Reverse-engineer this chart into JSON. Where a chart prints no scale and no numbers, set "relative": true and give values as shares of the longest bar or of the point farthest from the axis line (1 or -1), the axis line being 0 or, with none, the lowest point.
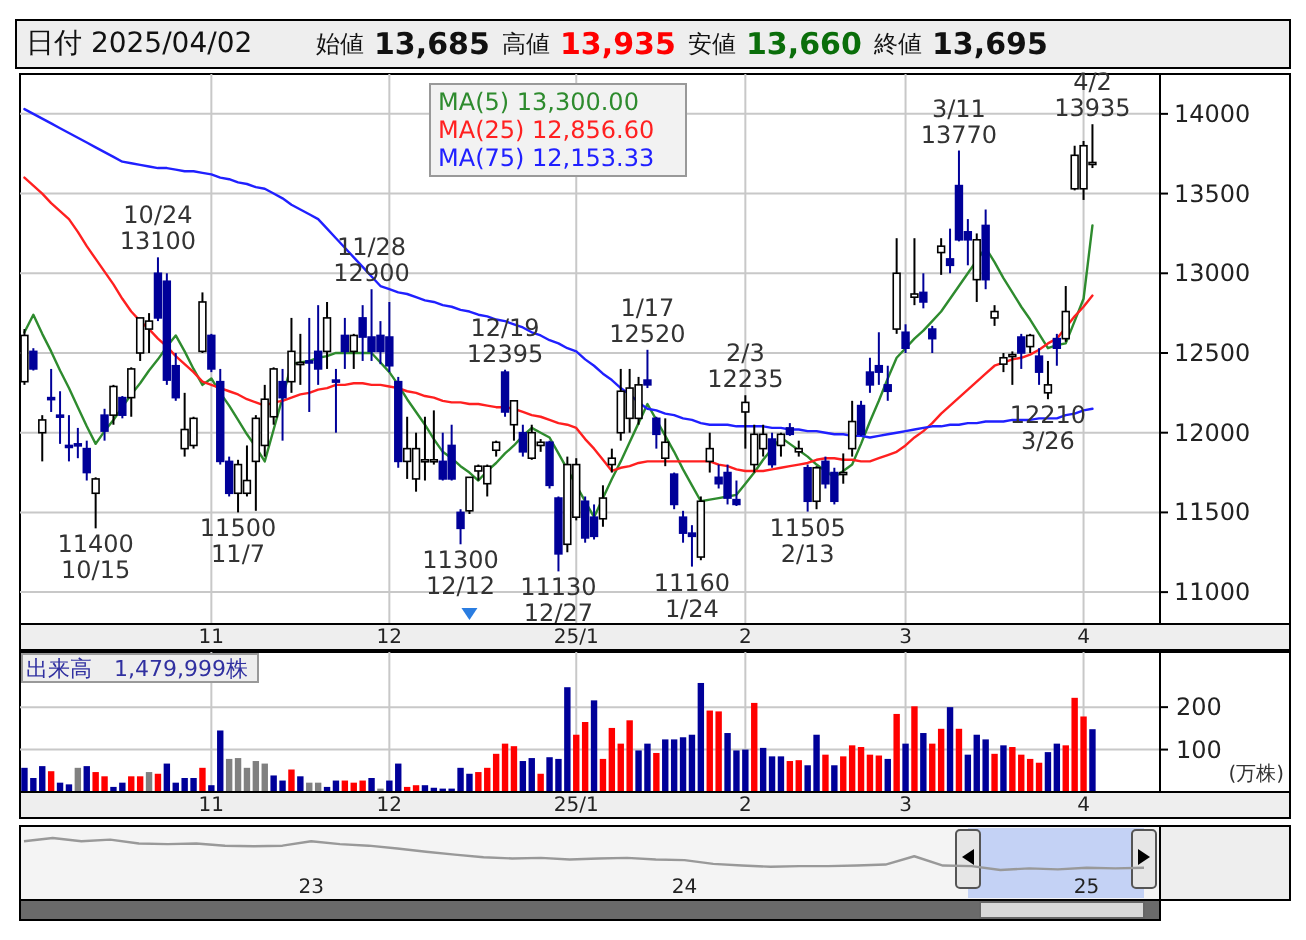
{
  "chart_data": [
    {
      "type": "other",
      "title": "日付 2025/04/02",
      "annotations": [
        "始値 13,685",
        "高値 13,935",
        "安値 13,660",
        "終値 13,695"
      ]
    },
    {
      "type": "candlestick",
      "ylim": [
        10800,
        14250
      ],
      "yticks": [
        11000,
        11500,
        12000,
        12500,
        13000,
        13500,
        14000
      ],
      "grid": true,
      "legend": "top",
      "categories": [
        null,
        null,
        null,
        null,
        null,
        null,
        null,
        null,
        null,
        null,
        null,
        null,
        null,
        null,
        null,
        null,
        null,
        null,
        null,
        null,
        null,
        "11",
        null,
        null,
        null,
        null,
        null,
        null,
        null,
        null,
        null,
        null,
        null,
        null,
        null,
        null,
        null,
        null,
        null,
        null,
        null,
        "12",
        null,
        null,
        null,
        null,
        null,
        null,
        null,
        null,
        null,
        null,
        null,
        null,
        null,
        null,
        null,
        null,
        null,
        null,
        null,
        null,
        "25/1",
        null,
        null,
        null,
        null,
        null,
        null,
        null,
        null,
        null,
        null,
        null,
        null,
        null,
        null,
        null,
        null,
        null,
        null,
        "2",
        null,
        null,
        null,
        null,
        null,
        null,
        null,
        null,
        null,
        null,
        null,
        null,
        null,
        null,
        null,
        null,
        null,
        "3",
        null,
        null,
        null,
        null,
        null,
        null,
        null,
        null,
        null,
        null,
        null,
        null,
        null,
        null,
        null,
        null,
        null,
        null,
        null,
        "4",
        null
      ],
      "ohlc": [
        [
          12320,
          12650,
          12300,
          12610
        ],
        [
          12510,
          12530,
          12390,
          12400
        ],
        [
          12000,
          12110,
          11820,
          12080
        ],
        [
          12220,
          12400,
          12130,
          12210
        ],
        [
          12110,
          12260,
          11930,
          12100
        ],
        [
          11920,
          12110,
          11820,
          11910
        ],
        [
          11930,
          12030,
          11840,
          11920
        ],
        [
          11900,
          11950,
          11700,
          11750
        ],
        [
          11620,
          11720,
          11400,
          11710
        ],
        [
          12110,
          12150,
          11950,
          12010
        ],
        [
          12110,
          12300,
          12050,
          12290
        ],
        [
          12220,
          12230,
          12090,
          12110
        ],
        [
          12220,
          12410,
          12100,
          12400
        ],
        [
          12500,
          12720,
          12450,
          12720
        ],
        [
          12650,
          12750,
          12500,
          12700
        ],
        [
          13000,
          13100,
          12700,
          12720
        ],
        [
          12950,
          13000,
          12300,
          12330
        ],
        [
          12420,
          12500,
          12200,
          12220
        ],
        [
          11900,
          12250,
          11850,
          12020
        ],
        [
          11920,
          12100,
          11900,
          12090
        ],
        [
          12510,
          12880,
          12500,
          12820
        ],
        [
          12610,
          12620,
          12380,
          12400
        ],
        [
          12320,
          12400,
          11800,
          11820
        ],
        [
          11820,
          11850,
          11600,
          11620
        ],
        [
          11620,
          11830,
          11500,
          11800
        ],
        [
          11620,
          11920,
          11600,
          11700
        ],
        [
          11820,
          12110,
          11510,
          12090
        ],
        [
          11920,
          12300,
          11850,
          12210
        ],
        [
          12100,
          12410,
          12050,
          12400
        ],
        [
          12320,
          12400,
          11950,
          12220
        ],
        [
          12320,
          12720,
          12250,
          12510
        ],
        [
          12430,
          12620,
          12300,
          12440
        ],
        [
          12450,
          12720,
          12130,
          12440
        ],
        [
          12510,
          12800,
          12300,
          12400
        ],
        [
          12510,
          12820,
          12400,
          12720
        ],
        [
          12330,
          12400,
          12000,
          12320
        ],
        [
          12610,
          12720,
          12400,
          12510
        ],
        [
          12510,
          12620,
          12400,
          12610
        ],
        [
          12720,
          12800,
          12450,
          12600
        ],
        [
          12600,
          12900,
          12450,
          12510
        ],
        [
          12610,
          12700,
          12430,
          12510
        ],
        [
          12600,
          12820,
          12380,
          12420
        ],
        [
          12320,
          12350,
          11780,
          11820
        ],
        [
          11820,
          12100,
          11710,
          11900
        ],
        [
          11710,
          12000,
          11630,
          11900
        ],
        [
          11820,
          12100,
          11700,
          11830
        ],
        [
          11820,
          12140,
          11800,
          11830
        ],
        [
          11820,
          12000,
          11700,
          11710
        ],
        [
          11920,
          12050,
          11700,
          11710
        ],
        [
          11500,
          11520,
          11300,
          11400
        ],
        [
          11510,
          11720,
          11490,
          11720
        ],
        [
          11760,
          11800,
          11700,
          11790
        ],
        [
          11680,
          11800,
          11600,
          11790
        ],
        [
          11890,
          11950,
          11850,
          11940
        ],
        [
          12380,
          12395,
          12100,
          12130
        ],
        [
          12050,
          12200,
          11950,
          12200
        ],
        [
          12000,
          12050,
          11850,
          11880
        ],
        [
          11840,
          12050,
          11830,
          12000
        ],
        [
          11920,
          11960,
          11880,
          11940
        ],
        [
          11940,
          11950,
          11650,
          11670
        ],
        [
          11590,
          11600,
          11130,
          11240
        ],
        [
          11300,
          11850,
          11250,
          11800
        ],
        [
          11470,
          11840,
          11450,
          11800
        ],
        [
          11570,
          11600,
          11310,
          11340
        ],
        [
          11470,
          11550,
          11330,
          11350
        ],
        [
          11460,
          11670,
          11410,
          11590
        ],
        [
          11800,
          11900,
          11750,
          11840
        ],
        [
          12000,
          12400,
          11950,
          12260
        ],
        [
          12090,
          12400,
          12000,
          12280
        ],
        [
          12090,
          12350,
          12050,
          12300
        ],
        [
          12330,
          12520,
          12280,
          12300
        ],
        [
          12090,
          12100,
          11900,
          11990
        ],
        [
          11840,
          12090,
          11790,
          11940
        ],
        [
          11740,
          11750,
          11520,
          11550
        ],
        [
          11470,
          11510,
          11310,
          11370
        ],
        [
          11370,
          11420,
          11160,
          11350
        ],
        [
          11220,
          11600,
          11200,
          11570
        ],
        [
          11820,
          12000,
          11750,
          11900
        ],
        [
          11720,
          11800,
          11650,
          11680
        ],
        [
          11750,
          11800,
          11550,
          11590
        ],
        [
          11580,
          11700,
          11540,
          11550
        ],
        [
          12130,
          12235,
          11900,
          12190
        ],
        [
          11800,
          12050,
          11750,
          11990
        ],
        [
          11900,
          12050,
          11850,
          11990
        ],
        [
          11960,
          12000,
          11780,
          11800
        ],
        [
          11920,
          12000,
          11850,
          11990
        ],
        [
          12030,
          12060,
          11980,
          11990
        ],
        [
          11880,
          11950,
          11850,
          11900
        ],
        [
          11780,
          11800,
          11505,
          11570
        ],
        [
          11570,
          11790,
          11520,
          11780
        ],
        [
          11820,
          11850,
          11650,
          11680
        ],
        [
          11750,
          11780,
          11550,
          11570
        ],
        [
          11740,
          11870,
          11680,
          11750
        ],
        [
          11900,
          12200,
          11850,
          12070
        ],
        [
          12170,
          12200,
          11980,
          11990
        ],
        [
          12380,
          12470,
          12250,
          12300
        ],
        [
          12420,
          12630,
          12300,
          12380
        ],
        [
          12300,
          12420,
          12200,
          12260
        ],
        [
          12650,
          13220,
          12620,
          13000
        ],
        [
          12630,
          12680,
          12500,
          12530
        ],
        [
          12850,
          13220,
          12800,
          12870
        ],
        [
          12880,
          13000,
          12780,
          12820
        ],
        [
          12650,
          12670,
          12500,
          12590
        ],
        [
          13130,
          13220,
          12990,
          13170
        ],
        [
          13090,
          13280,
          13000,
          13050
        ],
        [
          13550,
          13770,
          13200,
          13210
        ],
        [
          13260,
          13340,
          13050,
          13210
        ],
        [
          12960,
          13250,
          12820,
          13210
        ],
        [
          13300,
          13400,
          12900,
          12960
        ],
        [
          12720,
          12800,
          12670,
          12760
        ],
        [
          12430,
          12500,
          12380,
          12470
        ],
        [
          12480,
          12510,
          12300,
          12490
        ],
        [
          12600,
          12620,
          12400,
          12500
        ],
        [
          12540,
          12620,
          12500,
          12610
        ],
        [
          12480,
          12530,
          12300,
          12380
        ],
        [
          12250,
          12450,
          12210,
          12300
        ],
        [
          12590,
          12620,
          12420,
          12530
        ],
        [
          12590,
          12920,
          12570,
          12760
        ],
        [
          13530,
          13800,
          13520,
          13740
        ],
        [
          13530,
          13830,
          13460,
          13800
        ],
        [
          13685,
          13935,
          13660,
          13695
        ]
      ],
      "series": [
        {
          "name": "MA(5) 13,300.00",
          "type": "line",
          "color": "#2e8b2e",
          "values": [
            12630,
            12740,
            12620,
            12510,
            12390,
            12280,
            12160,
            12040,
            11930,
            12010,
            12080,
            12160,
            12240,
            12310,
            12390,
            12460,
            12540,
            12610,
            12510,
            12400,
            12300,
            12340,
            12250,
            12170,
            12080,
            11990,
            11910,
            11820,
            12020,
            12220,
            12430,
            12440,
            12450,
            12470,
            12480,
            12500,
            12500,
            12500,
            12500,
            12500,
            12440,
            12380,
            12300,
            12210,
            12130,
            12050,
            11960,
            11880,
            11840,
            11790,
            11750,
            11700,
            11760,
            11810,
            11870,
            11920,
            11980,
            12030,
            12000,
            11970,
            11870,
            11770,
            11670,
            11570,
            11470,
            11590,
            11710,
            11820,
            11940,
            12060,
            12180,
            12080,
            11980,
            11880,
            11770,
            11670,
            11570,
            11580,
            11590,
            11600,
            11610,
            11680,
            11750,
            11830,
            11900,
            11970,
            11930,
            11890,
            11850,
            11800,
            11760,
            11720,
            11760,
            11800,
            11930,
            12070,
            12200,
            12340,
            12470,
            12530,
            12590,
            12640,
            12700,
            12760,
            12840,
            12920,
            13000,
            13080,
            13160,
            13070,
            12970,
            12880,
            12790,
            12710,
            12620,
            12530,
            12550,
            12560,
            12700,
            12840,
            13300
          ]
        },
        {
          "name": "MA(25) 12,856.60",
          "type": "line",
          "color": "#ff2020",
          "values": [
            13600,
            13550,
            13500,
            13440,
            13390,
            13340,
            13260,
            13170,
            13090,
            13010,
            12930,
            12840,
            12760,
            12700,
            12650,
            12590,
            12540,
            12480,
            12430,
            12380,
            12320,
            12300,
            12280,
            12260,
            12240,
            12210,
            12190,
            12170,
            12190,
            12200,
            12220,
            12240,
            12250,
            12270,
            12280,
            12300,
            12300,
            12310,
            12310,
            12300,
            12300,
            12290,
            12280,
            12260,
            12250,
            12230,
            12220,
            12200,
            12190,
            12190,
            12180,
            12180,
            12170,
            12160,
            12160,
            12150,
            12130,
            12110,
            12100,
            12080,
            12060,
            12050,
            12030,
            11960,
            11900,
            11830,
            11760,
            11780,
            11790,
            11810,
            11820,
            11820,
            11820,
            11820,
            11820,
            11820,
            11820,
            11820,
            11800,
            11790,
            11770,
            11760,
            11760,
            11760,
            11770,
            11780,
            11790,
            11800,
            11810,
            11830,
            11840,
            11840,
            11830,
            11830,
            11820,
            11820,
            11840,
            11860,
            11880,
            11920,
            11970,
            12010,
            12060,
            12120,
            12170,
            12220,
            12270,
            12320,
            12370,
            12420,
            12440,
            12460,
            12470,
            12490,
            12520,
            12560,
            12590,
            12660,
            12730,
            12790,
            12860
          ]
        },
        {
          "name": "MA(75) 12,153.33",
          "type": "line",
          "color": "#2020ff",
          "values": [
            14030,
            14000,
            13970,
            13940,
            13910,
            13880,
            13850,
            13820,
            13790,
            13760,
            13730,
            13700,
            13690,
            13680,
            13670,
            13660,
            13660,
            13650,
            13640,
            13640,
            13630,
            13620,
            13600,
            13590,
            13570,
            13560,
            13540,
            13530,
            13500,
            13470,
            13430,
            13400,
            13370,
            13340,
            13280,
            13220,
            13160,
            13100,
            13040,
            12980,
            12920,
            12900,
            12880,
            12870,
            12850,
            12830,
            12820,
            12800,
            12790,
            12770,
            12760,
            12740,
            12730,
            12710,
            12700,
            12680,
            12660,
            12630,
            12610,
            12580,
            12560,
            12530,
            12510,
            12460,
            12420,
            12370,
            12330,
            12280,
            12240,
            12190,
            12150,
            12140,
            12120,
            12110,
            12090,
            12080,
            12060,
            12050,
            12050,
            12050,
            12040,
            12040,
            12040,
            12040,
            12030,
            12030,
            12020,
            12020,
            12010,
            12010,
            12000,
            11990,
            11990,
            11980,
            11980,
            11970,
            11980,
            11990,
            12000,
            12010,
            12020,
            12030,
            12040,
            12040,
            12050,
            12050,
            12060,
            12060,
            12070,
            12070,
            12070,
            12080,
            12080,
            12080,
            12090,
            12090,
            12090,
            12110,
            12120,
            12140,
            12150
          ]
        }
      ],
      "annotations": [
        {
          "text": "10/24\n13100",
          "y": 13100
        },
        {
          "text": "11400\n10/15",
          "y": 11400
        },
        {
          "text": "11500\n11/7",
          "y": 11500
        },
        {
          "text": "11/28\n12900",
          "y": 12900
        },
        {
          "text": "11300\n12/12",
          "y": 11300
        },
        {
          "text": "12/19\n12395",
          "y": 12395
        },
        {
          "text": "11130\n12/27",
          "y": 11130
        },
        {
          "text": "1/17\n12520",
          "y": 12520
        },
        {
          "text": "11160\n1/24",
          "y": 11160
        },
        {
          "text": "2/3\n12235",
          "y": 12235
        },
        {
          "text": "11505\n2/13",
          "y": 11505
        },
        {
          "text": "3/11\n13770",
          "y": 13770
        },
        {
          "text": "12210\n3/26",
          "y": 12210
        },
        {
          "text": "4/2\n13935",
          "y": 13935
        }
      ]
    },
    {
      "type": "bar",
      "title": "出来高　1,479,999株",
      "ylabel": "(万株)",
      "ylim": [
        0,
        330
      ],
      "yticks": [
        100,
        200
      ],
      "grid": true,
      "categories": [
        null,
        null,
        null,
        null,
        null,
        null,
        null,
        null,
        null,
        null,
        null,
        null,
        null,
        null,
        null,
        null,
        null,
        null,
        null,
        null,
        null,
        "11",
        null,
        null,
        null,
        null,
        null,
        null,
        null,
        null,
        null,
        null,
        null,
        null,
        null,
        null,
        null,
        null,
        null,
        null,
        null,
        "12",
        null,
        null,
        null,
        null,
        null,
        null,
        null,
        null,
        null,
        null,
        null,
        null,
        null,
        null,
        null,
        null,
        null,
        null,
        null,
        null,
        "25/1",
        null,
        null,
        null,
        null,
        null,
        null,
        null,
        null,
        null,
        null,
        null,
        null,
        null,
        null,
        null,
        null,
        null,
        null,
        "2",
        null,
        null,
        null,
        null,
        null,
        null,
        null,
        null,
        null,
        null,
        null,
        null,
        null,
        null,
        null,
        null,
        null,
        "3",
        null,
        null,
        null,
        null,
        null,
        null,
        null,
        null,
        null,
        null,
        null,
        null,
        null,
        null,
        null,
        null,
        null,
        null,
        null,
        "4",
        null
      ],
      "values": [
        57,
        33,
        61,
        49,
        22,
        18,
        57,
        61,
        47,
        37,
        12,
        22,
        37,
        37,
        47,
        43,
        67,
        22,
        33,
        33,
        57,
        16,
        145,
        78,
        80,
        57,
        73,
        67,
        39,
        27,
        53,
        37,
        22,
        22,
        12,
        27,
        27,
        22,
        27,
        33,
        8,
        27,
        67,
        12,
        16,
        16,
        10,
        8,
        8,
        57,
        43,
        47,
        57,
        90,
        114,
        108,
        73,
        80,
        43,
        82,
        78,
        247,
        135,
        165,
        216,
        78,
        151,
        114,
        169,
        98,
        114,
        92,
        124,
        124,
        129,
        135,
        257,
        192,
        190,
        139,
        98,
        100,
        210,
        104,
        84,
        84,
        73,
        75,
        63,
        135,
        88,
        63,
        84,
        110,
        106,
        88,
        86,
        78,
        184,
        114,
        202,
        139,
        114,
        149,
        200,
        149,
        88,
        135,
        124,
        90,
        110,
        106,
        88,
        78,
        69,
        94,
        114,
        110,
        222,
        178,
        148
      ],
      "colors": [
        "#000099",
        "#000099",
        "#000099",
        "#ff0000",
        "#000099",
        "#000099",
        "#808080",
        "#000099",
        "#ff0000",
        "#ff0000",
        "#000099",
        "#000099",
        "#ff0000",
        "#ff0000",
        "#808080",
        "#ff0000",
        "#000099",
        "#000099",
        "#000099",
        "#000099",
        "#ff0000",
        "#000099",
        "#000099",
        "#808080",
        "#808080",
        "#808080",
        "#808080",
        "#808080",
        "#000099",
        "#000099",
        "#ff0000",
        "#000099",
        "#808080",
        "#808080",
        "#000099",
        "#000099",
        "#ff0000",
        "#ff0000",
        "#ff0000",
        "#000099",
        "#808080",
        "#000099",
        "#000099",
        "#ff0000",
        "#ff0000",
        "#000099",
        "#000099",
        "#000099",
        "#000099",
        "#000099",
        "#000099",
        "#ff0000",
        "#ff0000",
        "#ff0000",
        "#ff0000",
        "#ff0000",
        "#000099",
        "#000099",
        "#ff0000",
        "#000099",
        "#000099",
        "#000099",
        "#ff0000",
        "#ff0000",
        "#000099",
        "#ff0000",
        "#ff0000",
        "#ff0000",
        "#ff0000",
        "#000099",
        "#000099",
        "#ff0000",
        "#000099",
        "#000099",
        "#000099",
        "#000099",
        "#000099",
        "#ff0000",
        "#ff0000",
        "#000099",
        "#000099",
        "#000099",
        "#ff0000",
        "#000099",
        "#000099",
        "#000099",
        "#ff0000",
        "#ff0000",
        "#000099",
        "#000099",
        "#ff0000",
        "#000099",
        "#ff0000",
        "#ff0000",
        "#ff0000",
        "#ff0000",
        "#ff0000",
        "#000099",
        "#ff0000",
        "#000099",
        "#ff0000",
        "#000099",
        "#ff0000",
        "#ff0000",
        "#000099",
        "#ff0000",
        "#000099",
        "#000099",
        "#000099",
        "#ff0000",
        "#000099",
        "#ff0000",
        "#ff0000",
        "#ff0000",
        "#ff0000",
        "#000099",
        "#000099",
        "#ff0000",
        "#ff0000",
        "#ff0000",
        "#000099"
      ]
    },
    {
      "type": "line",
      "relative": true,
      "color": "#999999",
      "categories": [
        null,
        null,
        null,
        null,
        null,
        null,
        null,
        null,
        null,
        null,
        "23",
        null,
        null,
        null,
        null,
        null,
        null,
        null,
        null,
        null,
        null,
        null,
        null,
        "24",
        null,
        null,
        null,
        null,
        null,
        null,
        null,
        null,
        null,
        null,
        null,
        null,
        null,
        "25",
        null,
        null
      ],
      "values": [
        0.9,
        1,
        0.9,
        0.95,
        0.83,
        0.81,
        0.83,
        0.76,
        0.74,
        0.76,
        0.9,
        0.81,
        0.76,
        0.67,
        0.57,
        0.48,
        0.4,
        0.36,
        0.38,
        0.33,
        0.36,
        0.38,
        0.33,
        0.31,
        0.19,
        0.14,
        0.1,
        0.12,
        0.12,
        0.14,
        0.17,
        0.43,
        0.14,
        0.12,
        0,
        0.05,
        0.02,
        0.07,
        0.05,
        0.07
      ]
    }
  ]
}
